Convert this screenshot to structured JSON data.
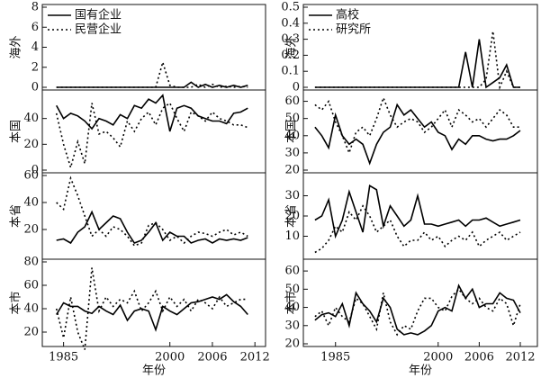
{
  "chart_data": [
    {
      "type": "line",
      "ylabel": "海外",
      "x": [
        1984,
        1985,
        1986,
        1987,
        1988,
        1989,
        1990,
        1991,
        1992,
        1993,
        1994,
        1995,
        1996,
        1997,
        1998,
        1999,
        2000,
        2001,
        2002,
        2003,
        2004,
        2005,
        2006,
        2007,
        2008,
        2009,
        2010,
        2011
      ],
      "xlim": [
        1982,
        2013.5
      ],
      "ylim": [
        0,
        8
      ],
      "yticks": [
        0,
        2,
        4,
        6,
        8
      ],
      "series": [
        {
          "name": "国有企业",
          "color": "#000000",
          "dash": "solid",
          "values": [
            0,
            0,
            0,
            0,
            0,
            0,
            0,
            0,
            0,
            0,
            0,
            0,
            0,
            0,
            0,
            0,
            0,
            0,
            0,
            0.5,
            0,
            0.3,
            0,
            0.2,
            0,
            0.2,
            0,
            0.2
          ]
        },
        {
          "name": "民营企业",
          "color": "#000000",
          "dash": "dotted",
          "values": [
            0,
            0,
            0,
            0,
            0,
            0,
            0,
            0,
            0,
            0,
            0,
            0,
            0,
            0,
            0,
            2.5,
            0.2,
            0,
            0,
            0,
            0.3,
            0,
            0.3,
            0,
            0.1,
            0,
            0.1,
            0
          ]
        }
      ]
    },
    {
      "type": "line",
      "ylabel": "本国",
      "x": [
        1984,
        1985,
        1986,
        1987,
        1988,
        1989,
        1990,
        1991,
        1992,
        1993,
        1994,
        1995,
        1996,
        1997,
        1998,
        1999,
        2000,
        2001,
        2002,
        2003,
        2004,
        2005,
        2006,
        2007,
        2008,
        2009,
        2010,
        2011
      ],
      "xlim": [
        1982,
        2013.5
      ],
      "ylim": [
        0,
        60
      ],
      "yticks": [
        0,
        20,
        40
      ],
      "series": [
        {
          "color": "#000000",
          "dash": "solid",
          "values": [
            50,
            40,
            44,
            42,
            38,
            32,
            40,
            38,
            35,
            43,
            40,
            50,
            48,
            55,
            52,
            58,
            30,
            48,
            50,
            48,
            42,
            40,
            38,
            38,
            36,
            44,
            45,
            48
          ]
        },
        {
          "color": "#000000",
          "dash": "dotted",
          "values": [
            44,
            20,
            2,
            22,
            5,
            52,
            28,
            30,
            25,
            18,
            38,
            30,
            40,
            45,
            35,
            48,
            52,
            40,
            30,
            45,
            42,
            38,
            45,
            40,
            38,
            35,
            35,
            33
          ]
        }
      ]
    },
    {
      "type": "line",
      "ylabel": "本省",
      "x": [
        1984,
        1985,
        1986,
        1987,
        1988,
        1989,
        1990,
        1991,
        1992,
        1993,
        1994,
        1995,
        1996,
        1997,
        1998,
        1999,
        2000,
        2001,
        2002,
        2003,
        2004,
        2005,
        2006,
        2007,
        2008,
        2009,
        2010,
        2011
      ],
      "xlim": [
        1982,
        2013.5
      ],
      "ylim": [
        0,
        60
      ],
      "yticks": [
        20,
        40,
        60
      ],
      "series": [
        {
          "color": "#000000",
          "dash": "solid",
          "values": [
            12,
            13,
            10,
            18,
            22,
            33,
            20,
            25,
            30,
            28,
            18,
            10,
            12,
            18,
            25,
            12,
            18,
            15,
            15,
            10,
            12,
            13,
            10,
            13,
            12,
            13,
            12,
            14
          ]
        },
        {
          "color": "#000000",
          "dash": "dotted",
          "values": [
            40,
            35,
            58,
            45,
            30,
            15,
            20,
            15,
            22,
            20,
            15,
            8,
            10,
            23,
            25,
            20,
            12,
            15,
            10,
            15,
            18,
            17,
            15,
            18,
            20,
            16,
            18,
            15
          ]
        }
      ]
    },
    {
      "type": "line",
      "ylabel": "本市",
      "x": [
        1984,
        1985,
        1986,
        1987,
        1988,
        1989,
        1990,
        1991,
        1992,
        1993,
        1994,
        1995,
        1996,
        1997,
        1998,
        1999,
        2000,
        2001,
        2002,
        2003,
        2004,
        2005,
        2006,
        2007,
        2008,
        2009,
        2010,
        2011
      ],
      "xlim": [
        1982,
        2013.5
      ],
      "ylim": [
        10,
        80
      ],
      "yticks": [
        20,
        40,
        60,
        80
      ],
      "xticks": [
        1985,
        2000,
        2006,
        2012
      ],
      "xlabel": "年份",
      "series": [
        {
          "color": "#000000",
          "dash": "solid",
          "values": [
            35,
            45,
            42,
            42,
            38,
            36,
            42,
            38,
            35,
            43,
            30,
            38,
            40,
            38,
            22,
            42,
            38,
            35,
            40,
            45,
            46,
            48,
            50,
            48,
            52,
            46,
            42,
            35
          ]
        },
        {
          "color": "#000000",
          "dash": "dotted",
          "values": [
            40,
            15,
            50,
            20,
            5,
            75,
            38,
            50,
            42,
            48,
            45,
            55,
            38,
            45,
            55,
            38,
            50,
            42,
            48,
            38,
            48,
            45,
            40,
            50,
            42,
            45,
            48,
            48
          ]
        }
      ]
    },
    {
      "type": "line",
      "ylabel": "海外",
      "x": [
        1982,
        1983,
        1984,
        1985,
        1986,
        1987,
        1988,
        1989,
        1990,
        1991,
        1992,
        1993,
        1994,
        1995,
        1996,
        1997,
        1998,
        1999,
        2000,
        2001,
        2002,
        2003,
        2004,
        2005,
        2006,
        2007,
        2008,
        2009,
        2010,
        2011,
        2012
      ],
      "xlim": [
        1980.3,
        2014.5
      ],
      "ylim": [
        0,
        0.5
      ],
      "yticks": [
        0,
        0.1,
        0.2,
        0.3,
        0.4,
        0.5
      ],
      "series": [
        {
          "name": "高校",
          "color": "#000000",
          "dash": "solid",
          "values": [
            0,
            0,
            0,
            0,
            0,
            0,
            0,
            0,
            0,
            0,
            0,
            0,
            0,
            0,
            0,
            0,
            0,
            0,
            0,
            0,
            0,
            0,
            0.22,
            0,
            0.3,
            0,
            0.03,
            0.06,
            0.14,
            0,
            0
          ]
        },
        {
          "name": "研究所",
          "color": "#000000",
          "dash": "dotted",
          "values": [
            0,
            0,
            0,
            0,
            0,
            0,
            0,
            0,
            0,
            0,
            0,
            0,
            0,
            0,
            0,
            0,
            0,
            0,
            0,
            0,
            0,
            0,
            0,
            0,
            0,
            0.05,
            0.35,
            0,
            0.1,
            0,
            0
          ]
        }
      ]
    },
    {
      "type": "line",
      "ylabel": "本国",
      "x": [
        1982,
        1983,
        1984,
        1985,
        1986,
        1987,
        1988,
        1989,
        1990,
        1991,
        1992,
        1993,
        1994,
        1995,
        1996,
        1997,
        1998,
        1999,
        2000,
        2001,
        2002,
        2003,
        2004,
        2005,
        2006,
        2007,
        2008,
        2009,
        2010,
        2011,
        2012
      ],
      "xlim": [
        1980.3,
        2014.5
      ],
      "ylim": [
        20,
        65
      ],
      "yticks": [
        20,
        30,
        40,
        50,
        60
      ],
      "series": [
        {
          "color": "#000000",
          "dash": "solid",
          "values": [
            45,
            40,
            33,
            52,
            40,
            35,
            38,
            35,
            24,
            35,
            42,
            45,
            58,
            52,
            55,
            50,
            45,
            48,
            42,
            40,
            32,
            38,
            35,
            40,
            40,
            38,
            37,
            38,
            38,
            40,
            43
          ]
        },
        {
          "color": "#000000",
          "dash": "dotted",
          "values": [
            58,
            55,
            60,
            48,
            40,
            30,
            42,
            45,
            40,
            50,
            62,
            52,
            45,
            48,
            50,
            48,
            42,
            45,
            50,
            55,
            45,
            55,
            52,
            48,
            50,
            45,
            50,
            55,
            52,
            45,
            45
          ]
        }
      ]
    },
    {
      "type": "line",
      "ylabel": "本省",
      "x": [
        1982,
        1983,
        1984,
        1985,
        1986,
        1987,
        1988,
        1989,
        1990,
        1991,
        1992,
        1993,
        1994,
        1995,
        1996,
        1997,
        1998,
        1999,
        2000,
        2001,
        2002,
        2003,
        2004,
        2005,
        2006,
        2007,
        2008,
        2009,
        2010,
        2011,
        2012
      ],
      "xlim": [
        1980.3,
        2014.5
      ],
      "ylim": [
        0,
        40
      ],
      "yticks": [
        10,
        20,
        30
      ],
      "series": [
        {
          "color": "#000000",
          "dash": "solid",
          "values": [
            18,
            20,
            28,
            10,
            18,
            32,
            22,
            12,
            35,
            33,
            15,
            25,
            20,
            15,
            18,
            30,
            16,
            16,
            15,
            16,
            17,
            18,
            15,
            18,
            18,
            19,
            17,
            15,
            16,
            17,
            18
          ]
        },
        {
          "color": "#000000",
          "dash": "dotted",
          "values": [
            2,
            4,
            8,
            15,
            12,
            22,
            18,
            25,
            20,
            12,
            15,
            18,
            10,
            5,
            8,
            8,
            12,
            8,
            10,
            5,
            8,
            10,
            8,
            12,
            5,
            8,
            10,
            12,
            8,
            10,
            12
          ]
        }
      ]
    },
    {
      "type": "line",
      "ylabel": "本市",
      "x": [
        1982,
        1983,
        1984,
        1985,
        1986,
        1987,
        1988,
        1989,
        1990,
        1991,
        1992,
        1993,
        1994,
        1995,
        1996,
        1997,
        1998,
        1999,
        2000,
        2001,
        2002,
        2003,
        2004,
        2005,
        2006,
        2007,
        2008,
        2009,
        2010,
        2011,
        2012
      ],
      "xlim": [
        1980.3,
        2014.5
      ],
      "ylim": [
        20,
        65
      ],
      "yticks": [
        20,
        30,
        40,
        50,
        60
      ],
      "xticks": [
        1985,
        2000,
        2006,
        2012
      ],
      "xlabel": "年份",
      "series": [
        {
          "color": "#000000",
          "dash": "solid",
          "values": [
            33,
            36,
            37,
            35,
            42,
            30,
            48,
            42,
            38,
            32,
            45,
            40,
            28,
            25,
            26,
            25,
            27,
            30,
            38,
            40,
            38,
            52,
            45,
            50,
            40,
            42,
            42,
            48,
            45,
            44,
            37
          ]
        },
        {
          "color": "#000000",
          "dash": "dotted",
          "values": [
            35,
            38,
            30,
            40,
            35,
            32,
            45,
            42,
            35,
            28,
            48,
            32,
            25,
            30,
            28,
            38,
            45,
            45,
            40,
            38,
            46,
            50,
            45,
            42,
            45,
            40,
            38,
            45,
            42,
            30,
            42
          ]
        }
      ]
    }
  ]
}
